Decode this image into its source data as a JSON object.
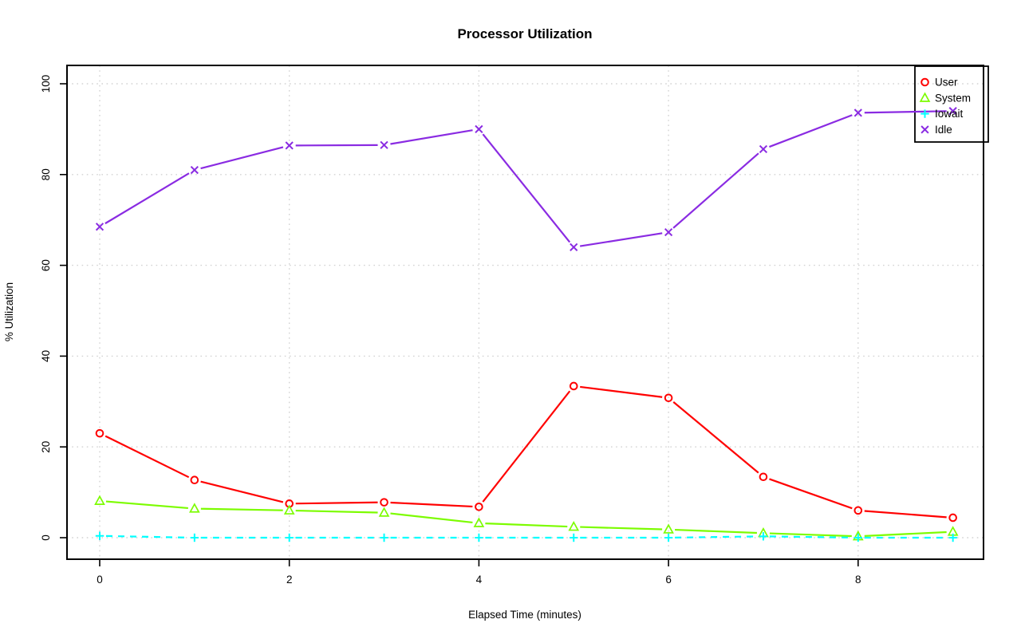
{
  "chart_data": {
    "type": "line",
    "title": "Processor Utilization",
    "xlabel": "Elapsed Time (minutes)",
    "ylabel": "% Utilization",
    "x": [
      0,
      1,
      2,
      3,
      4,
      5,
      6,
      7,
      8,
      9
    ],
    "x_ticks": [
      0,
      2,
      4,
      6,
      8
    ],
    "y_ticks": [
      0,
      20,
      40,
      60,
      80,
      100
    ],
    "xlim": [
      0,
      9
    ],
    "ylim": [
      0,
      100
    ],
    "grid": "dotted",
    "legend_position": "top-right",
    "legend_entries": [
      "User",
      "System",
      "Iowait",
      "Idle"
    ],
    "series": [
      {
        "name": "User",
        "color": "#ff0000",
        "marker": "circle",
        "line_style": "solid",
        "values": [
          23.0,
          12.7,
          7.5,
          7.8,
          6.8,
          33.4,
          30.8,
          13.4,
          6.0,
          4.4
        ]
      },
      {
        "name": "System",
        "color": "#7cfc00",
        "marker": "triangle",
        "line_style": "solid",
        "values": [
          8.1,
          6.4,
          6.0,
          5.5,
          3.2,
          2.4,
          1.8,
          1.0,
          0.3,
          1.3
        ]
      },
      {
        "name": "Iowait",
        "color": "#00ffff",
        "marker": "plus",
        "line_style": "dashed",
        "values": [
          0.4,
          0.0,
          0.0,
          0.0,
          0.0,
          0.0,
          0.0,
          0.3,
          0.0,
          0.0
        ]
      },
      {
        "name": "Idle",
        "color": "#8a2be2",
        "marker": "x",
        "line_style": "solid",
        "values": [
          68.5,
          81.0,
          86.4,
          86.5,
          90.0,
          64.0,
          67.3,
          85.6,
          93.6,
          94.0
        ]
      }
    ]
  },
  "colors": {
    "background": "#ffffff",
    "axis": "#000000",
    "grid": "#d2d2d2",
    "legend_border": "#000000",
    "text": "#000000"
  }
}
